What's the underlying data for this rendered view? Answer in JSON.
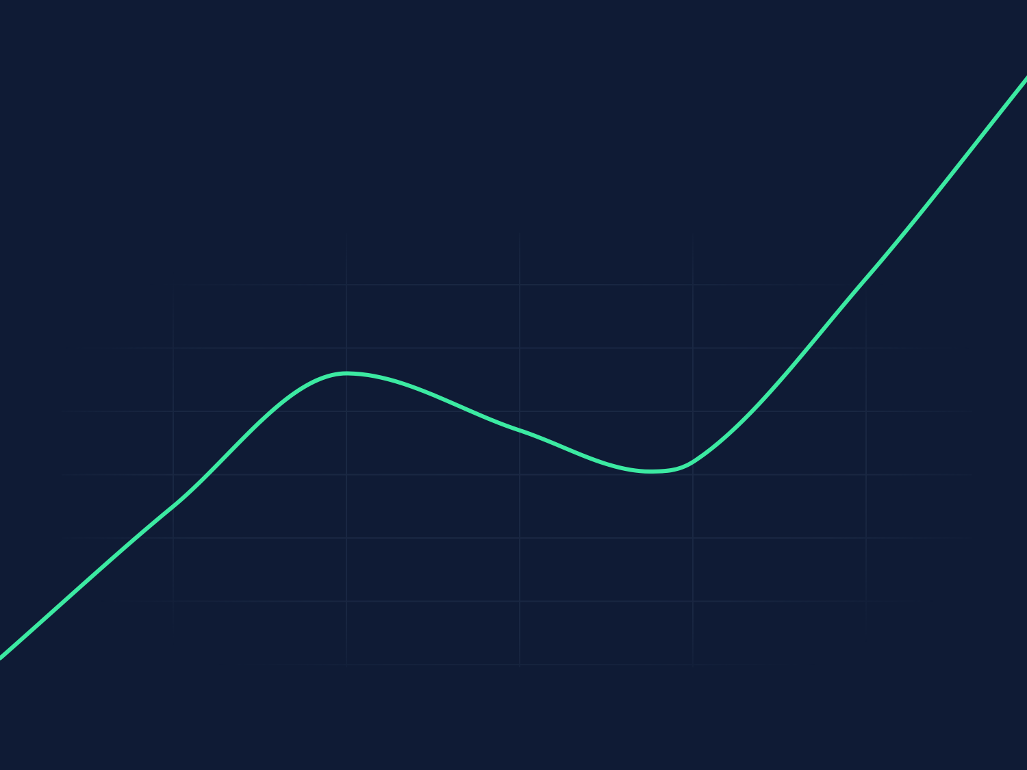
{
  "colors": {
    "background": "#0f1b35",
    "grid": "#1b2944",
    "line": "#3ceaa2"
  },
  "chart_data": {
    "type": "line",
    "title": "",
    "xlabel": "",
    "ylabel": "",
    "grid": true,
    "legend": "none",
    "xlim": [
      -1,
      5
    ],
    "ylim": [
      -1,
      11
    ],
    "series": [
      {
        "color": "#3ceaa2",
        "points": [
          {
            "x": -1.0,
            "y": 0.1
          },
          {
            "x": 0.0,
            "y": 2.5
          },
          {
            "x": 1.0,
            "y": 4.6
          },
          {
            "x": 2.0,
            "y": 3.7
          },
          {
            "x": 2.75,
            "y": 3.05
          },
          {
            "x": 3.0,
            "y": 3.2
          },
          {
            "x": 4.0,
            "y": 6.1
          },
          {
            "x": 5.0,
            "y": 9.5
          }
        ]
      }
    ]
  }
}
